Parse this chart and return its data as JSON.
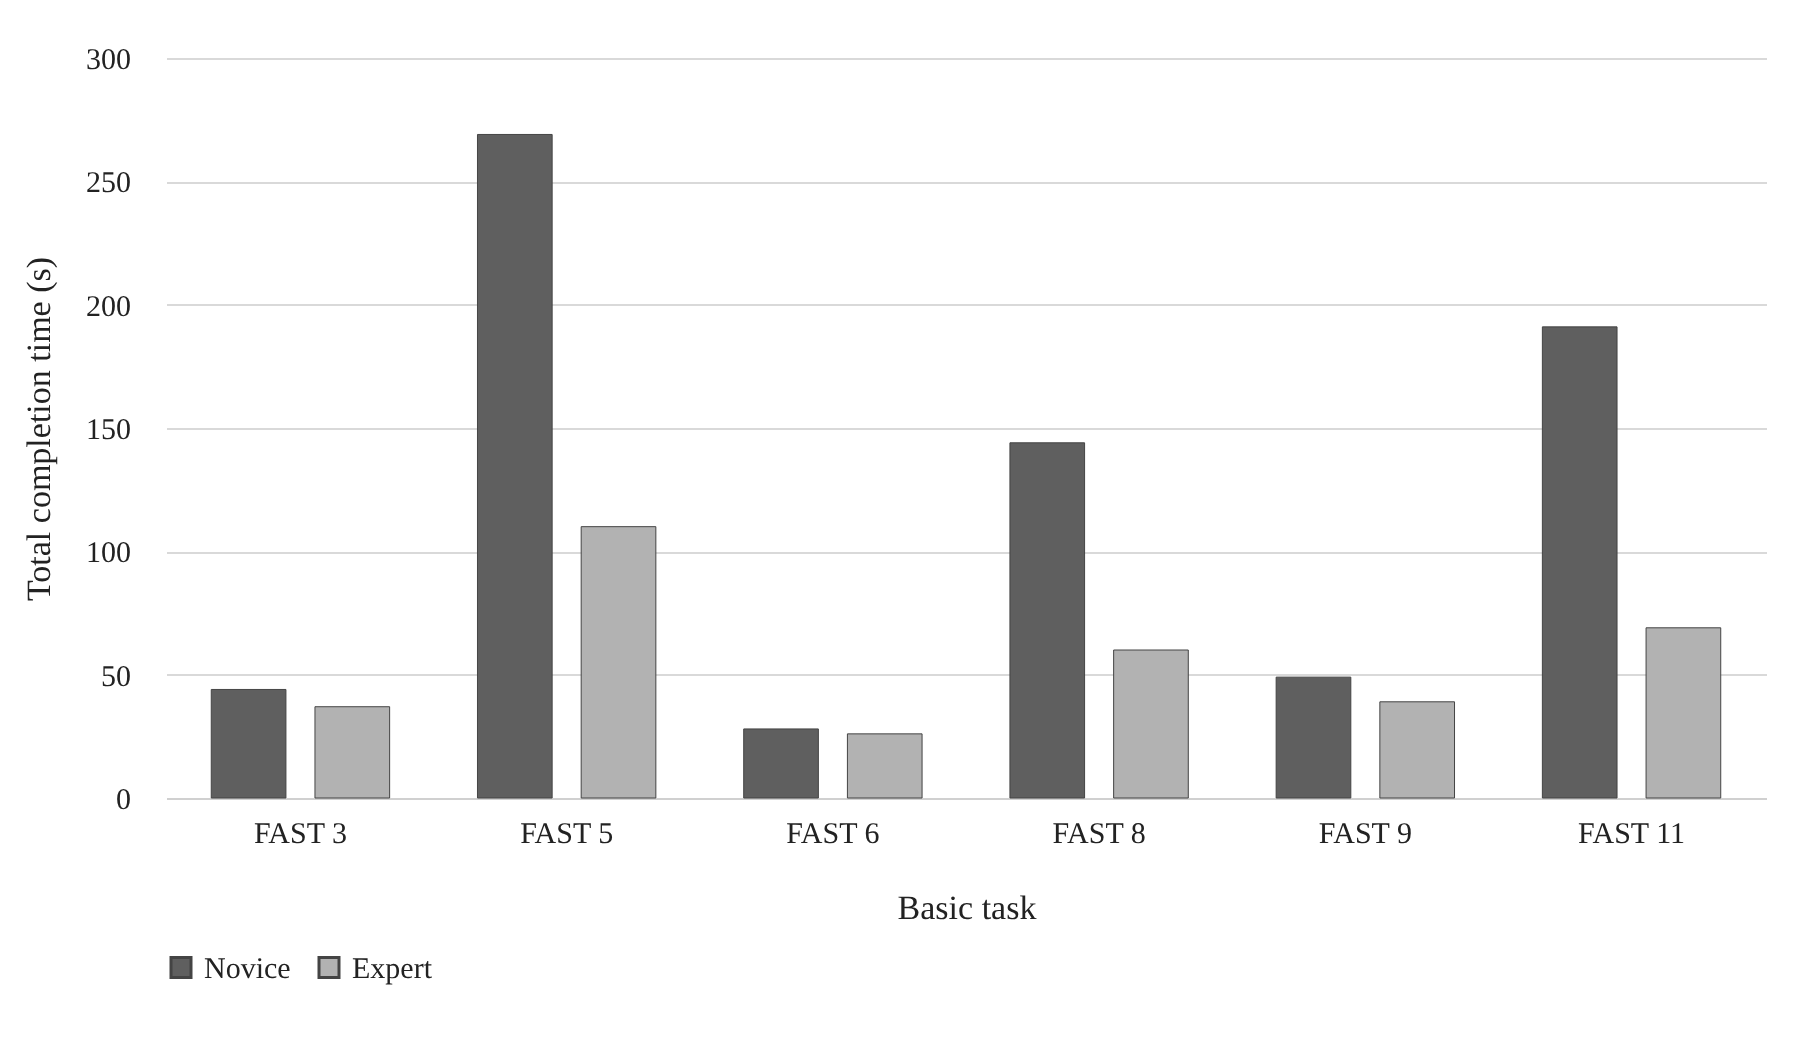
{
  "chart_data": {
    "type": "bar",
    "xlabel": "Basic task",
    "ylabel": "Total completion time (s)",
    "categories": [
      "FAST 3",
      "FAST 5",
      "FAST 6",
      "FAST 8",
      "FAST 9",
      "FAST 11"
    ],
    "series": [
      {
        "name": "Novice",
        "color": "#5f5f5f",
        "values": [
          44,
          269,
          28,
          144,
          49,
          191
        ]
      },
      {
        "name": "Expert",
        "color": "#b2b2b2",
        "values": [
          37,
          110,
          26,
          60,
          39,
          69
        ]
      }
    ],
    "ylim": [
      0,
      300
    ],
    "yticks": [
      0,
      50,
      100,
      150,
      200,
      250,
      300
    ],
    "grid": "y",
    "legend": "bottom"
  }
}
